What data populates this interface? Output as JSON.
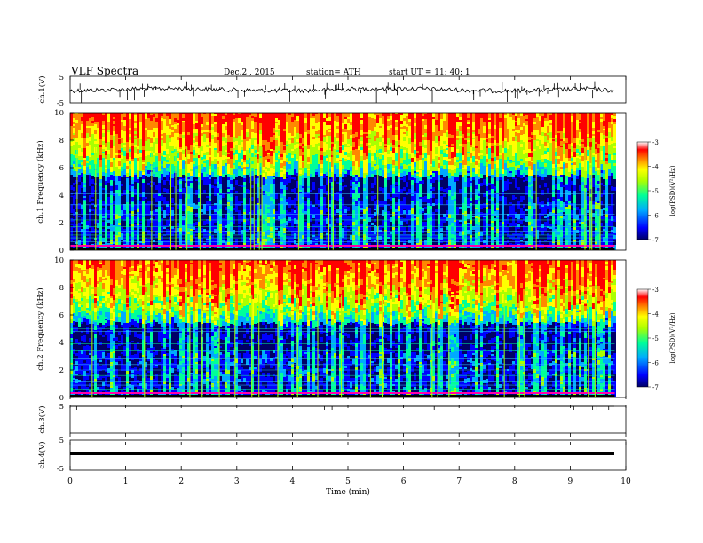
{
  "header": {
    "title": "VLF Spectra",
    "date": "Dec.2 , 2015",
    "station": "station= ATH",
    "start_ut": "start UT = 11: 40: 1"
  },
  "chart_data": [
    {
      "type": "line",
      "panel": "ch1-waveform",
      "ylabel": "ch.1(V)",
      "ylim": [
        -5,
        5
      ],
      "yticks": [
        "5",
        "-5"
      ],
      "xlim": [
        0,
        10
      ],
      "description_values": {
        "baseline_V": 0.2,
        "data_end_min": 9.8
      }
    },
    {
      "type": "heatmap",
      "panel": "ch1-spectrogram",
      "ylabel": "ch.1 Frequency (kHz)",
      "ylim": [
        0,
        10
      ],
      "yticks": [
        "0",
        "2",
        "4",
        "6",
        "8",
        "10"
      ],
      "xlim": [
        0,
        10
      ],
      "colorbar": {
        "label": "log(PSD)(V²/Hz)",
        "range": [
          -7,
          -3
        ],
        "ticks": [
          "-3",
          "-4",
          "-5",
          "-6",
          "-7"
        ]
      }
    },
    {
      "type": "heatmap",
      "panel": "ch2-spectrogram",
      "ylabel": "ch.2 Frequency (kHz)",
      "ylim": [
        0,
        10
      ],
      "yticks": [
        "0",
        "2",
        "4",
        "6",
        "8",
        "10"
      ],
      "xlim": [
        0,
        10
      ],
      "colorbar": {
        "label": "log(PSD)(V²/Hz)",
        "range": [
          -7,
          -3
        ],
        "ticks": [
          "-3",
          "-4",
          "-5",
          "-6",
          "-7"
        ]
      }
    },
    {
      "type": "line",
      "panel": "ch3-waveform",
      "ylabel": "ch.3(V)",
      "ylim": [
        -5,
        5
      ],
      "yticks": [
        "5"
      ],
      "xlim": [
        0,
        10
      ],
      "description_values": {
        "baseline_V": 5
      }
    },
    {
      "type": "line",
      "panel": "ch4-waveform",
      "ylabel": "ch.4(V)",
      "ylim": [
        -5,
        5
      ],
      "yticks": [
        "5",
        "-5"
      ],
      "xlim": [
        0,
        10
      ],
      "description_values": {
        "baseline_V": 0
      }
    }
  ],
  "xaxis": {
    "label": "Time (min)",
    "ticks": [
      "0",
      "1",
      "2",
      "3",
      "4",
      "5",
      "6",
      "7",
      "8",
      "9",
      "10"
    ]
  },
  "colors": {
    "colormap": [
      "#000066",
      "#0000ff",
      "#00aaff",
      "#00ff99",
      "#aaff00",
      "#ffff00",
      "#ff8800",
      "#ff0000",
      "#ffffff"
    ]
  }
}
